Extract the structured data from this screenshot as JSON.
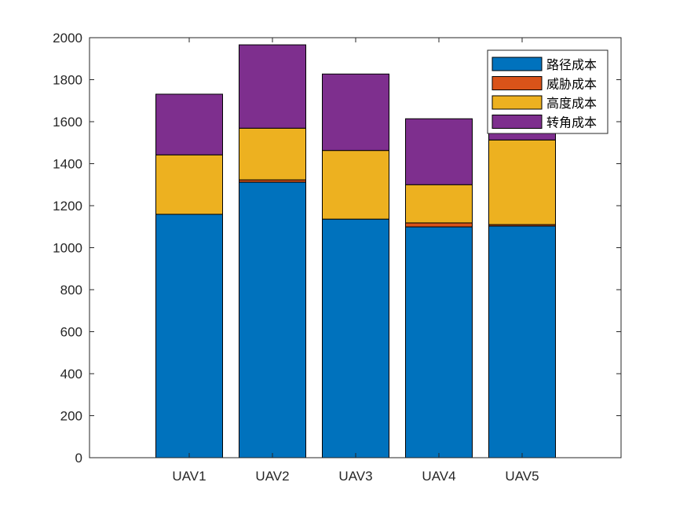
{
  "chart_data": {
    "type": "bar",
    "stacked": true,
    "title": "",
    "xlabel": "",
    "ylabel": "",
    "categories": [
      "UAV1",
      "UAV2",
      "UAV3",
      "UAV4",
      "UAV5"
    ],
    "series": [
      {
        "name": "路径成本",
        "color": "#0072BD",
        "values": [
          1159,
          1312,
          1136,
          1099,
          1103
        ]
      },
      {
        "name": "威胁成本",
        "color": "#D95319",
        "values": [
          0,
          11,
          0,
          19,
          7
        ]
      },
      {
        "name": "高度成本",
        "color": "#EDB120",
        "values": [
          283,
          246,
          327,
          182,
          403
        ]
      },
      {
        "name": "转角成本",
        "color": "#7E2F8E",
        "values": [
          289,
          397,
          364,
          314,
          300
        ]
      }
    ],
    "ylim": [
      0,
      2000
    ],
    "yticks": [
      0,
      200,
      400,
      600,
      800,
      1000,
      1200,
      1400,
      1600,
      1800,
      2000
    ],
    "grid": false,
    "legend_position": "northeast"
  }
}
